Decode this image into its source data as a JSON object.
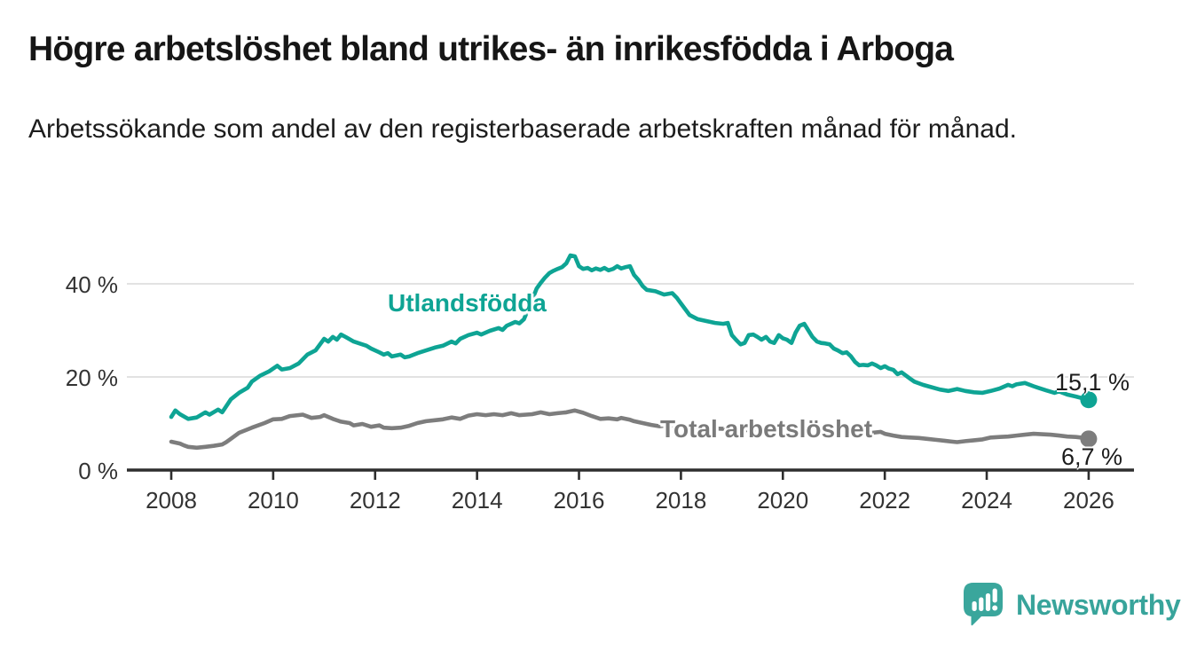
{
  "header": {
    "title": "Högre arbetslöshet bland utrikes- än inrikesfödda i Arboga",
    "subtitle": "Arbetssökande som andel av den registerbaserade arbetskraften månad för månad."
  },
  "branding": {
    "logo_text": "Newsworthy",
    "logo_color": "#38a49b"
  },
  "chart_data": {
    "type": "line",
    "x_axis": {
      "label": "",
      "tick_years": [
        2008,
        2010,
        2012,
        2014,
        2016,
        2018,
        2020,
        2022,
        2024,
        2026
      ],
      "tick_labels": [
        "2008",
        "2010",
        "2012",
        "2014",
        "2016",
        "2018",
        "2020",
        "2022",
        "2024",
        "2026"
      ],
      "range": [
        2007.1,
        2026.9
      ]
    },
    "y_axis": {
      "label": "",
      "tick_values": [
        0,
        20,
        40
      ],
      "tick_labels": [
        "0 %",
        "20 %",
        "40 %"
      ],
      "range": [
        0,
        47
      ],
      "gridlines": [
        20,
        40
      ]
    },
    "grid": "horizontal",
    "colors": {
      "axis": "#2e2e2e",
      "gridline": "#d9d9d9"
    },
    "series": [
      {
        "name": "Utlandsfödda",
        "color": "#0ea494",
        "end_value_label": "15,1 %",
        "end_value": 15.1,
        "points": [
          [
            2008.0,
            11.4
          ],
          [
            2008.08,
            12.8
          ],
          [
            2008.17,
            12.0
          ],
          [
            2008.33,
            11.0
          ],
          [
            2008.5,
            11.3
          ],
          [
            2008.67,
            12.4
          ],
          [
            2008.75,
            11.9
          ],
          [
            2008.92,
            13.0
          ],
          [
            2009.0,
            12.4
          ],
          [
            2009.17,
            15.2
          ],
          [
            2009.33,
            16.6
          ],
          [
            2009.5,
            17.7
          ],
          [
            2009.58,
            19.0
          ],
          [
            2009.75,
            20.3
          ],
          [
            2009.92,
            21.2
          ],
          [
            2010.08,
            22.4
          ],
          [
            2010.17,
            21.6
          ],
          [
            2010.33,
            21.9
          ],
          [
            2010.5,
            22.9
          ],
          [
            2010.67,
            24.8
          ],
          [
            2010.83,
            25.7
          ],
          [
            2011.0,
            28.2
          ],
          [
            2011.08,
            27.6
          ],
          [
            2011.17,
            28.6
          ],
          [
            2011.25,
            28.0
          ],
          [
            2011.33,
            29.1
          ],
          [
            2011.42,
            28.6
          ],
          [
            2011.58,
            27.6
          ],
          [
            2011.75,
            27.0
          ],
          [
            2011.83,
            26.7
          ],
          [
            2011.92,
            26.1
          ],
          [
            2012.08,
            25.3
          ],
          [
            2012.17,
            24.8
          ],
          [
            2012.25,
            25.1
          ],
          [
            2012.33,
            24.4
          ],
          [
            2012.5,
            24.8
          ],
          [
            2012.58,
            24.2
          ],
          [
            2012.67,
            24.4
          ],
          [
            2012.83,
            25.1
          ],
          [
            2013.0,
            25.7
          ],
          [
            2013.17,
            26.3
          ],
          [
            2013.33,
            26.7
          ],
          [
            2013.5,
            27.6
          ],
          [
            2013.58,
            27.2
          ],
          [
            2013.67,
            28.2
          ],
          [
            2013.83,
            29.0
          ],
          [
            2014.0,
            29.5
          ],
          [
            2014.08,
            29.1
          ],
          [
            2014.25,
            29.9
          ],
          [
            2014.42,
            30.5
          ],
          [
            2014.5,
            30.1
          ],
          [
            2014.58,
            31.0
          ],
          [
            2014.75,
            31.8
          ],
          [
            2014.83,
            31.5
          ],
          [
            2014.92,
            32.4
          ],
          [
            2015.0,
            34.5
          ],
          [
            2015.08,
            36.5
          ],
          [
            2015.17,
            39.0
          ],
          [
            2015.25,
            40.2
          ],
          [
            2015.33,
            41.3
          ],
          [
            2015.42,
            42.3
          ],
          [
            2015.5,
            42.8
          ],
          [
            2015.58,
            43.2
          ],
          [
            2015.67,
            43.6
          ],
          [
            2015.75,
            44.4
          ],
          [
            2015.83,
            46.1
          ],
          [
            2015.92,
            45.9
          ],
          [
            2016.0,
            43.8
          ],
          [
            2016.08,
            43.2
          ],
          [
            2016.17,
            43.4
          ],
          [
            2016.25,
            42.9
          ],
          [
            2016.33,
            43.3
          ],
          [
            2016.42,
            43.0
          ],
          [
            2016.5,
            43.4
          ],
          [
            2016.58,
            42.9
          ],
          [
            2016.67,
            43.2
          ],
          [
            2016.75,
            43.8
          ],
          [
            2016.83,
            43.3
          ],
          [
            2016.92,
            43.6
          ],
          [
            2017.0,
            43.8
          ],
          [
            2017.08,
            41.9
          ],
          [
            2017.17,
            40.8
          ],
          [
            2017.25,
            39.5
          ],
          [
            2017.33,
            38.7
          ],
          [
            2017.5,
            38.4
          ],
          [
            2017.67,
            37.7
          ],
          [
            2017.83,
            38.0
          ],
          [
            2017.92,
            37.0
          ],
          [
            2018.0,
            35.8
          ],
          [
            2018.17,
            33.3
          ],
          [
            2018.33,
            32.4
          ],
          [
            2018.5,
            32.0
          ],
          [
            2018.67,
            31.6
          ],
          [
            2018.83,
            31.4
          ],
          [
            2018.92,
            31.6
          ],
          [
            2019.0,
            29.0
          ],
          [
            2019.08,
            28.0
          ],
          [
            2019.17,
            27.0
          ],
          [
            2019.25,
            27.3
          ],
          [
            2019.33,
            29.0
          ],
          [
            2019.42,
            29.1
          ],
          [
            2019.5,
            28.6
          ],
          [
            2019.58,
            28.0
          ],
          [
            2019.67,
            28.6
          ],
          [
            2019.75,
            27.6
          ],
          [
            2019.83,
            27.3
          ],
          [
            2019.92,
            29.0
          ],
          [
            2020.0,
            28.3
          ],
          [
            2020.08,
            28.0
          ],
          [
            2020.17,
            27.3
          ],
          [
            2020.25,
            29.5
          ],
          [
            2020.33,
            31.0
          ],
          [
            2020.42,
            31.4
          ],
          [
            2020.5,
            30.0
          ],
          [
            2020.58,
            28.6
          ],
          [
            2020.67,
            27.6
          ],
          [
            2020.75,
            27.3
          ],
          [
            2020.83,
            27.2
          ],
          [
            2020.92,
            27.0
          ],
          [
            2021.0,
            26.1
          ],
          [
            2021.08,
            25.7
          ],
          [
            2021.17,
            25.1
          ],
          [
            2021.25,
            25.3
          ],
          [
            2021.33,
            24.5
          ],
          [
            2021.42,
            23.2
          ],
          [
            2021.5,
            22.5
          ],
          [
            2021.58,
            22.6
          ],
          [
            2021.67,
            22.5
          ],
          [
            2021.75,
            22.9
          ],
          [
            2021.83,
            22.5
          ],
          [
            2021.92,
            21.9
          ],
          [
            2022.0,
            22.3
          ],
          [
            2022.08,
            21.8
          ],
          [
            2022.17,
            21.5
          ],
          [
            2022.25,
            20.6
          ],
          [
            2022.33,
            21.0
          ],
          [
            2022.5,
            19.6
          ],
          [
            2022.58,
            19.0
          ],
          [
            2022.75,
            18.3
          ],
          [
            2022.92,
            17.8
          ],
          [
            2023.08,
            17.3
          ],
          [
            2023.25,
            17.0
          ],
          [
            2023.42,
            17.4
          ],
          [
            2023.58,
            17.0
          ],
          [
            2023.75,
            16.7
          ],
          [
            2023.92,
            16.6
          ],
          [
            2024.08,
            17.0
          ],
          [
            2024.25,
            17.5
          ],
          [
            2024.42,
            18.3
          ],
          [
            2024.5,
            18.0
          ],
          [
            2024.58,
            18.4
          ],
          [
            2024.75,
            18.7
          ],
          [
            2024.92,
            18.0
          ],
          [
            2025.0,
            17.7
          ],
          [
            2025.17,
            17.1
          ],
          [
            2025.33,
            16.6
          ],
          [
            2025.42,
            16.9
          ],
          [
            2025.58,
            16.2
          ],
          [
            2025.75,
            15.8
          ],
          [
            2025.92,
            15.3
          ],
          [
            2026.0,
            15.1
          ]
        ]
      },
      {
        "name": "Total arbetslöshet",
        "color": "#7d7d7d",
        "end_value_label": "6,7 %",
        "end_value": 6.7,
        "points": [
          [
            2008.0,
            6.1
          ],
          [
            2008.08,
            5.9
          ],
          [
            2008.17,
            5.7
          ],
          [
            2008.25,
            5.3
          ],
          [
            2008.33,
            5.0
          ],
          [
            2008.5,
            4.8
          ],
          [
            2008.67,
            5.0
          ],
          [
            2008.83,
            5.2
          ],
          [
            2009.0,
            5.5
          ],
          [
            2009.08,
            6.0
          ],
          [
            2009.17,
            6.7
          ],
          [
            2009.33,
            8.0
          ],
          [
            2009.58,
            9.1
          ],
          [
            2009.83,
            10.1
          ],
          [
            2010.0,
            10.9
          ],
          [
            2010.17,
            11.0
          ],
          [
            2010.33,
            11.6
          ],
          [
            2010.58,
            11.9
          ],
          [
            2010.75,
            11.2
          ],
          [
            2010.92,
            11.4
          ],
          [
            2011.0,
            11.8
          ],
          [
            2011.17,
            11.0
          ],
          [
            2011.33,
            10.4
          ],
          [
            2011.5,
            10.1
          ],
          [
            2011.58,
            9.6
          ],
          [
            2011.75,
            9.9
          ],
          [
            2011.92,
            9.3
          ],
          [
            2012.08,
            9.6
          ],
          [
            2012.17,
            9.1
          ],
          [
            2012.33,
            9.0
          ],
          [
            2012.5,
            9.1
          ],
          [
            2012.67,
            9.5
          ],
          [
            2012.83,
            10.1
          ],
          [
            2013.0,
            10.5
          ],
          [
            2013.17,
            10.7
          ],
          [
            2013.33,
            10.9
          ],
          [
            2013.5,
            11.3
          ],
          [
            2013.67,
            11.0
          ],
          [
            2013.83,
            11.7
          ],
          [
            2014.0,
            12.0
          ],
          [
            2014.17,
            11.8
          ],
          [
            2014.33,
            12.0
          ],
          [
            2014.5,
            11.8
          ],
          [
            2014.67,
            12.2
          ],
          [
            2014.83,
            11.8
          ],
          [
            2015.08,
            12.0
          ],
          [
            2015.25,
            12.4
          ],
          [
            2015.42,
            12.0
          ],
          [
            2015.58,
            12.2
          ],
          [
            2015.75,
            12.4
          ],
          [
            2015.92,
            12.8
          ],
          [
            2016.08,
            12.3
          ],
          [
            2016.25,
            11.6
          ],
          [
            2016.42,
            11.0
          ],
          [
            2016.58,
            11.1
          ],
          [
            2016.75,
            10.9
          ],
          [
            2016.83,
            11.2
          ],
          [
            2017.0,
            10.8
          ],
          [
            2017.08,
            10.5
          ],
          [
            2017.25,
            10.1
          ],
          [
            2017.42,
            9.7
          ],
          [
            2017.58,
            9.4
          ],
          [
            2017.75,
            9.6
          ],
          [
            2018.0,
            9.4
          ],
          [
            2018.25,
            9.2
          ],
          [
            2018.5,
            9.0
          ],
          [
            2018.75,
            8.9
          ],
          [
            2019.0,
            8.8
          ],
          [
            2019.25,
            8.6
          ],
          [
            2019.5,
            8.6
          ],
          [
            2019.75,
            8.8
          ],
          [
            2020.0,
            9.0
          ],
          [
            2020.25,
            9.5
          ],
          [
            2020.5,
            9.4
          ],
          [
            2020.75,
            9.2
          ],
          [
            2021.0,
            8.8
          ],
          [
            2021.25,
            8.5
          ],
          [
            2021.5,
            8.3
          ],
          [
            2021.75,
            8.0
          ],
          [
            2021.92,
            8.2
          ],
          [
            2022.0,
            7.8
          ],
          [
            2022.17,
            7.4
          ],
          [
            2022.33,
            7.1
          ],
          [
            2022.5,
            7.0
          ],
          [
            2022.67,
            6.9
          ],
          [
            2022.83,
            6.7
          ],
          [
            2023.0,
            6.5
          ],
          [
            2023.17,
            6.3
          ],
          [
            2023.33,
            6.1
          ],
          [
            2023.42,
            6.0
          ],
          [
            2023.58,
            6.2
          ],
          [
            2023.75,
            6.4
          ],
          [
            2023.92,
            6.6
          ],
          [
            2024.08,
            7.0
          ],
          [
            2024.25,
            7.1
          ],
          [
            2024.42,
            7.2
          ],
          [
            2024.58,
            7.4
          ],
          [
            2024.75,
            7.6
          ],
          [
            2024.92,
            7.8
          ],
          [
            2025.08,
            7.7
          ],
          [
            2025.25,
            7.6
          ],
          [
            2025.42,
            7.4
          ],
          [
            2025.58,
            7.2
          ],
          [
            2025.75,
            7.1
          ],
          [
            2025.92,
            6.9
          ],
          [
            2026.0,
            6.7
          ]
        ]
      }
    ]
  }
}
